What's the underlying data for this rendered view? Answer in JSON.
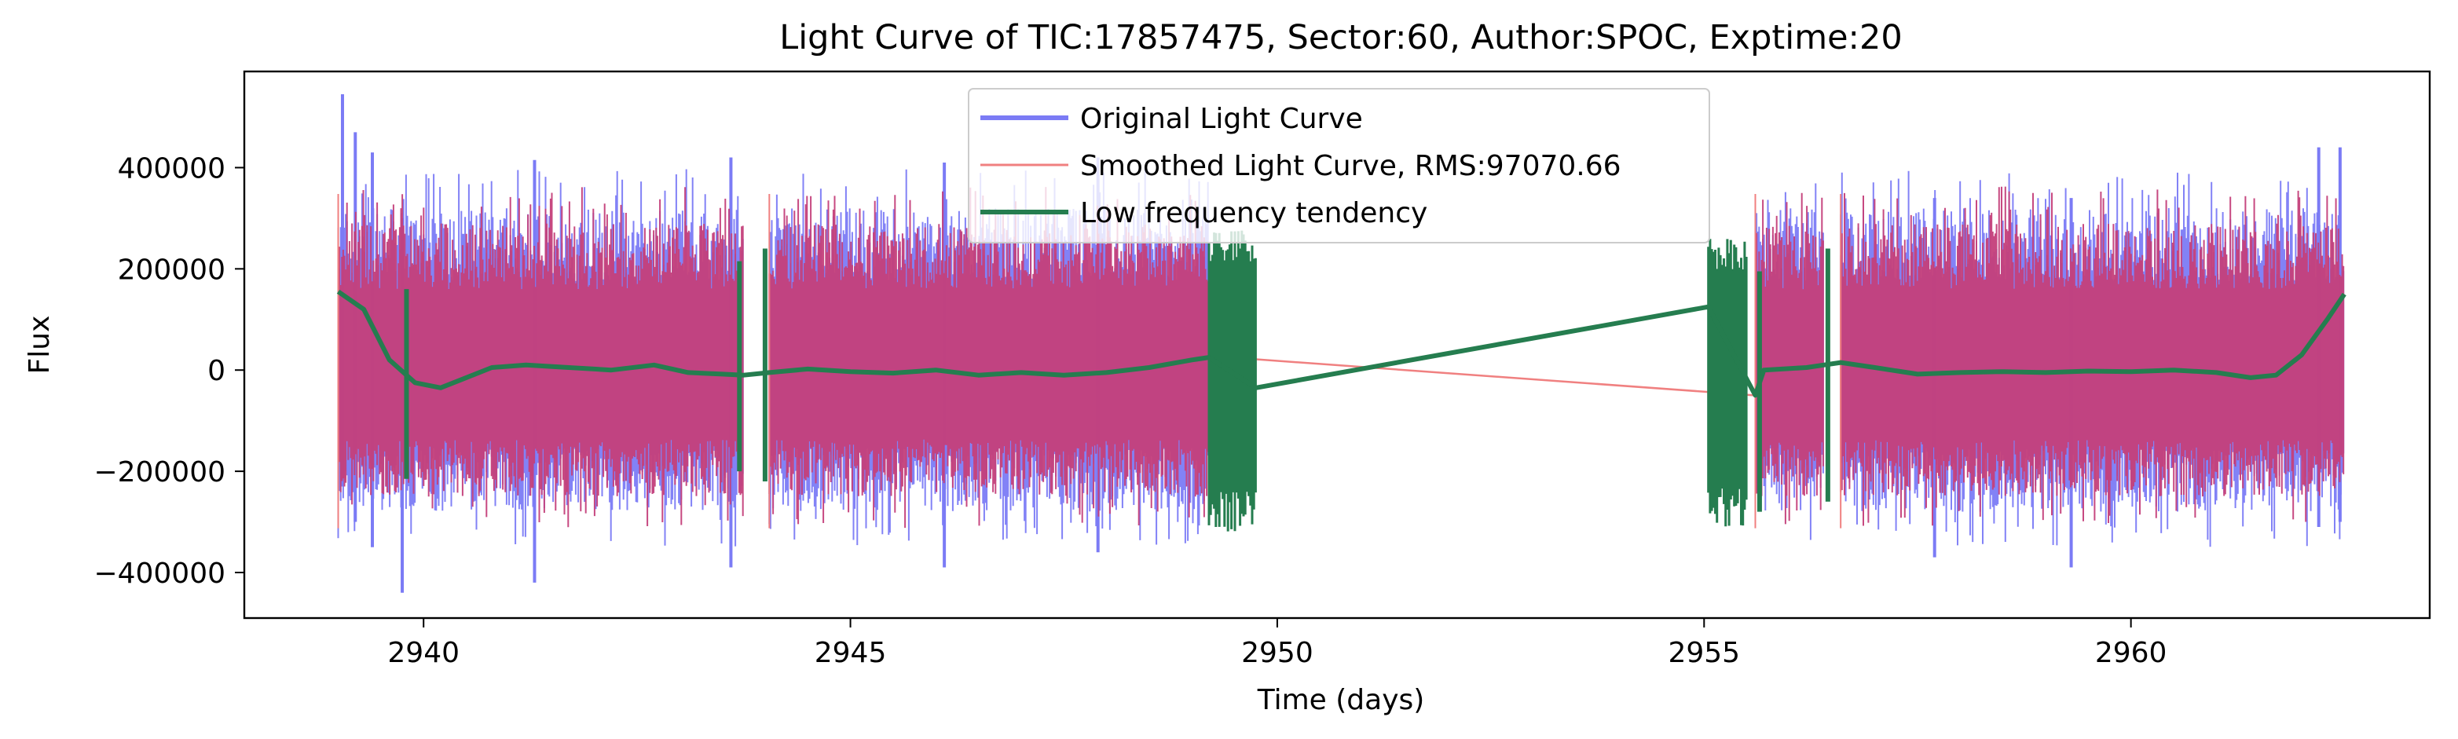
{
  "chart_data": {
    "type": "line",
    "title": "Light Curve of TIC:17857475, Sector:60, Author:SPOC, Exptime:20",
    "xlabel": "Time (days)",
    "ylabel": "Flux",
    "xlim": [
      2937.9,
      2963.5
    ],
    "ylim": [
      -490000,
      590000
    ],
    "x_ticks": [
      2940,
      2945,
      2950,
      2955,
      2960
    ],
    "x_tick_labels": [
      "2940",
      "2945",
      "2950",
      "2955",
      "2960"
    ],
    "y_ticks": [
      -400000,
      -200000,
      0,
      200000,
      400000
    ],
    "y_tick_labels": [
      "−400000",
      "−200000",
      "0",
      "200000",
      "400000"
    ],
    "grid": false,
    "legend_position": "top-center",
    "series": [
      {
        "name": "Original Light Curve",
        "color": "#7b7bf5",
        "style": "noise-band",
        "segments": [
          [
            2939.0,
            2943.75
          ],
          [
            2944.05,
            2949.2
          ],
          [
            2955.6,
            2956.4
          ],
          [
            2956.6,
            2962.5
          ]
        ],
        "typical_range": [
          -280000,
          320000
        ],
        "extremes": [
          {
            "x": 2939.05,
            "ymax": 545000,
            "ymin": -230000
          },
          {
            "x": 2939.2,
            "ymax": 470000,
            "ymin": -300000
          },
          {
            "x": 2939.4,
            "ymax": 430000,
            "ymin": -350000
          },
          {
            "x": 2939.75,
            "ymax": 300000,
            "ymin": -440000
          },
          {
            "x": 2941.3,
            "ymax": 415000,
            "ymin": -420000
          },
          {
            "x": 2943.6,
            "ymax": 420000,
            "ymin": -390000
          },
          {
            "x": 2946.1,
            "ymax": 410000,
            "ymin": -390000
          },
          {
            "x": 2947.9,
            "ymax": 420000,
            "ymin": -360000
          },
          {
            "x": 2957.7,
            "ymax": 340000,
            "ymin": -370000
          },
          {
            "x": 2959.3,
            "ymax": 340000,
            "ymin": -390000
          },
          {
            "x": 2962.2,
            "ymax": 440000,
            "ymin": -310000
          },
          {
            "x": 2962.45,
            "ymax": 440000,
            "ymin": -300000
          }
        ]
      },
      {
        "name": "Smoothed Light Curve, RMS:97070.66",
        "color": "#f08080",
        "fill_color": "#c43f7a",
        "style": "noise-band",
        "segments": [
          [
            2939.0,
            2943.75
          ],
          [
            2944.05,
            2949.2
          ],
          [
            2955.6,
            2956.4
          ],
          [
            2956.6,
            2962.5
          ]
        ],
        "typical_range": [
          -250000,
          290000
        ],
        "gap_line": [
          [
            2949.2,
            28000
          ],
          [
            2955.6,
            -50000
          ]
        ]
      },
      {
        "name": "Low frequency tendency",
        "color": "#257d4f",
        "style": "trend",
        "points": [
          [
            2939.0,
            155000
          ],
          [
            2939.3,
            120000
          ],
          [
            2939.6,
            20000
          ],
          [
            2939.9,
            -25000
          ],
          [
            2940.2,
            -35000
          ],
          [
            2940.5,
            -15000
          ],
          [
            2940.8,
            5000
          ],
          [
            2941.2,
            10000
          ],
          [
            2941.7,
            5000
          ],
          [
            2942.2,
            0
          ],
          [
            2942.7,
            10000
          ],
          [
            2943.1,
            -5000
          ],
          [
            2943.5,
            -8000
          ],
          [
            2943.75,
            -10000
          ],
          [
            2944.05,
            -5000
          ],
          [
            2944.5,
            2000
          ],
          [
            2945.0,
            -3000
          ],
          [
            2945.5,
            -6000
          ],
          [
            2946.0,
            0
          ],
          [
            2946.5,
            -10000
          ],
          [
            2947.0,
            -5000
          ],
          [
            2947.5,
            -10000
          ],
          [
            2948.0,
            -5000
          ],
          [
            2948.5,
            5000
          ],
          [
            2949.0,
            20000
          ],
          [
            2949.2,
            25000
          ],
          [
            2949.75,
            -35000
          ],
          [
            2955.05,
            125000
          ],
          [
            2955.6,
            -50000
          ],
          [
            2955.7,
            0
          ],
          [
            2956.2,
            5000
          ],
          [
            2956.4,
            10000
          ],
          [
            2956.6,
            15000
          ],
          [
            2957.0,
            5000
          ],
          [
            2957.5,
            -8000
          ],
          [
            2958.0,
            -5000
          ],
          [
            2958.5,
            -3000
          ],
          [
            2959.0,
            -5000
          ],
          [
            2959.5,
            -2000
          ],
          [
            2960.0,
            -3000
          ],
          [
            2960.5,
            0
          ],
          [
            2961.0,
            -5000
          ],
          [
            2961.4,
            -15000
          ],
          [
            2961.7,
            -10000
          ],
          [
            2962.0,
            30000
          ],
          [
            2962.3,
            100000
          ],
          [
            2962.5,
            150000
          ]
        ],
        "dense_bands": [
          {
            "x0": 2949.2,
            "x1": 2949.75,
            "ymin": -320000,
            "ymax": 280000
          },
          {
            "x0": 2955.05,
            "x1": 2955.5,
            "ymin": -310000,
            "ymax": 265000
          }
        ],
        "spikes": [
          {
            "x": 2939.8,
            "ymin": -215000,
            "ymax": 160000
          },
          {
            "x": 2943.7,
            "ymin": -200000,
            "ymax": 215000
          },
          {
            "x": 2944.0,
            "ymin": -220000,
            "ymax": 240000
          },
          {
            "x": 2955.65,
            "ymin": -280000,
            "ymax": 195000
          },
          {
            "x": 2956.45,
            "ymin": -260000,
            "ymax": 240000
          }
        ]
      }
    ]
  }
}
